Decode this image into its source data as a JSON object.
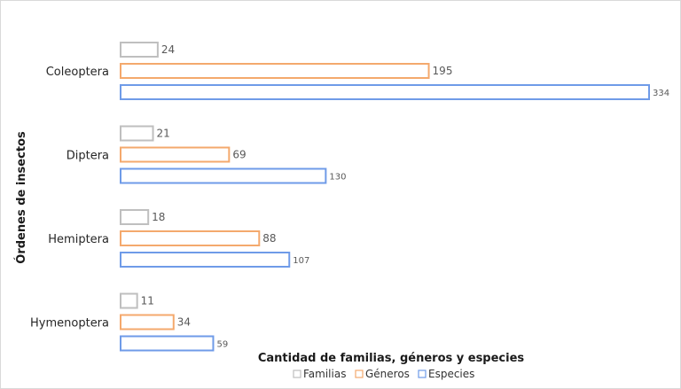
{
  "chart_data": {
    "type": "bar",
    "orientation": "horizontal",
    "categories": [
      "Coleoptera",
      "Diptera",
      "Hemiptera",
      "Hymenoptera"
    ],
    "series": [
      {
        "name": "Familias",
        "values": [
          24,
          21,
          18,
          11
        ],
        "color": "#bfbfbf"
      },
      {
        "name": "Géneros",
        "values": [
          195,
          69,
          88,
          34
        ],
        "color": "#f4a96d"
      },
      {
        "name": "Especies",
        "values": [
          334,
          130,
          107,
          59
        ],
        "color": "#6f9be8"
      }
    ],
    "xlabel": "Cantidad de familias, géneros y especies",
    "ylabel": "Órdenes de insectos",
    "xlim": [
      0,
      334
    ],
    "grid": false,
    "legend_position": "bottom",
    "data_labels": true
  }
}
